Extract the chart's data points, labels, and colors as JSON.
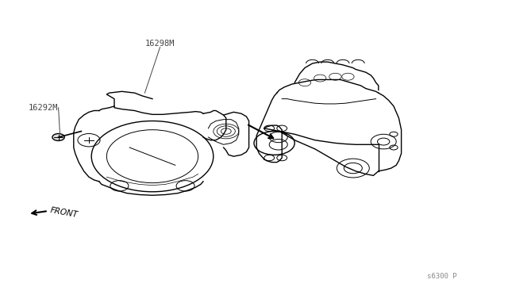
{
  "bg_color": "#ffffff",
  "line_color": "#000000",
  "label_color": "#444444",
  "gray_color": "#888888",
  "label_16298M": "16298M",
  "label_16292M": "16292M",
  "label_front": "FRONT",
  "label_part_num": "s6300 P"
}
